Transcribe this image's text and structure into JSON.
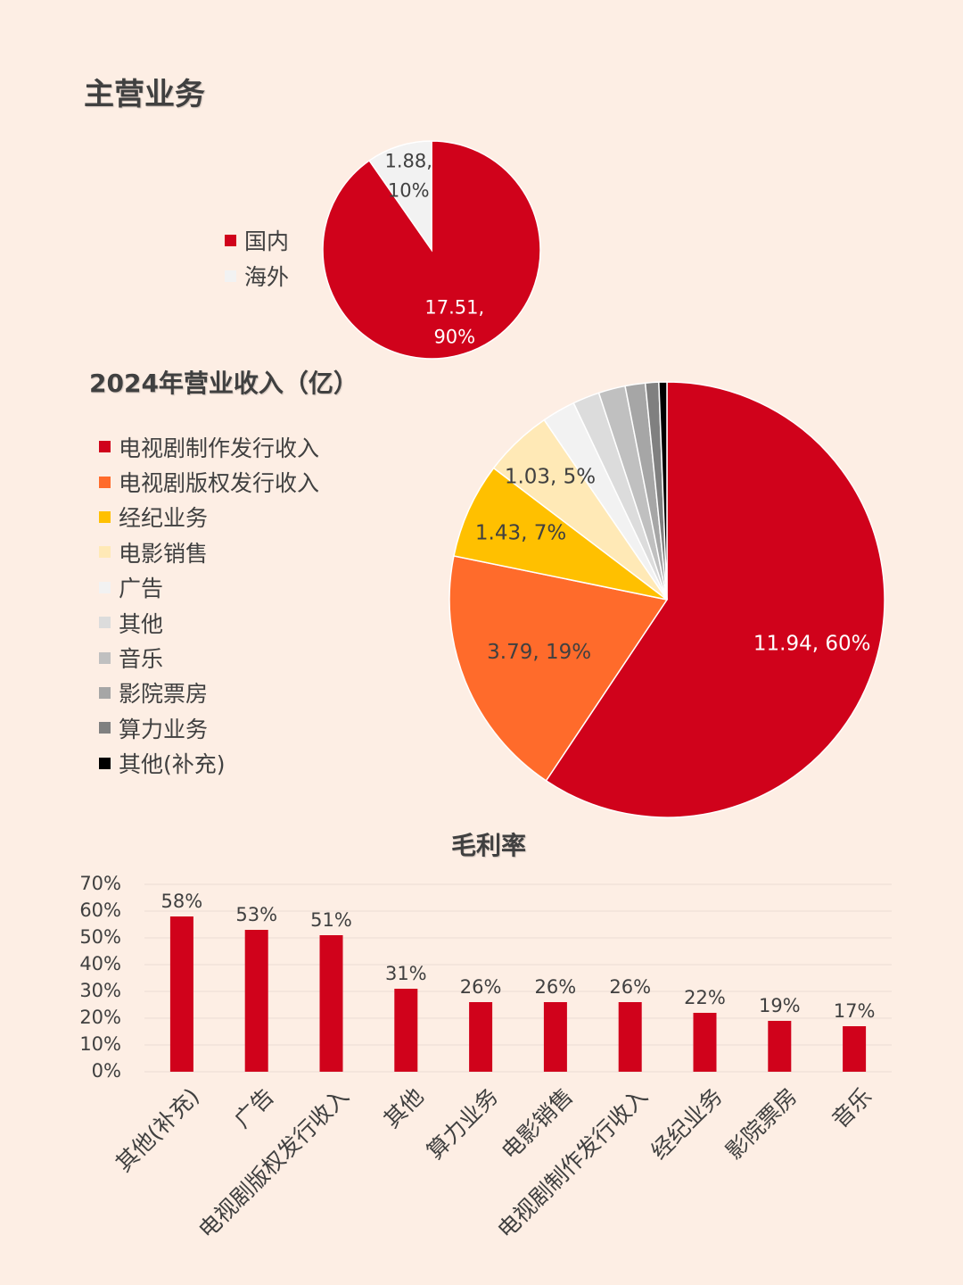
{
  "title1": "主营业务",
  "title2": "2024年营业收入（亿）",
  "title3": "毛利率",
  "chart_data": [
    {
      "type": "pie",
      "title": "主营业务",
      "legend_position": "left",
      "slices": [
        {
          "label": "国内",
          "value": 17.51,
          "percent": "90%",
          "data_label": [
            "17.51,",
            "90%"
          ],
          "color": "#d0021b",
          "label_color": "#ffffff"
        },
        {
          "label": "海外",
          "value": 1.88,
          "percent": "10%",
          "data_label": [
            "1.88,",
            "10%"
          ],
          "color": "#f2f2f2",
          "label_color": "#404040"
        }
      ]
    },
    {
      "type": "pie",
      "title": "2024年营业收入（亿）",
      "legend_position": "left",
      "slices": [
        {
          "label": "电视剧制作发行收入",
          "value": 11.94,
          "percent": "60%",
          "data_label": "11.94, 60%",
          "color": "#d0021b",
          "label_color": "#ffffff"
        },
        {
          "label": "电视剧版权发行收入",
          "value": 3.79,
          "percent": "19%",
          "data_label": "3.79, 19%",
          "color": "#ff6b2b",
          "label_color": "#404040"
        },
        {
          "label": "经纪业务",
          "value": 1.43,
          "percent": "7%",
          "data_label": "1.43, 7%",
          "color": "#ffc000",
          "label_color": "#404040"
        },
        {
          "label": "电影销售",
          "value": 1.03,
          "percent": "5%",
          "data_label": "1.03, 5%",
          "color": "#ffe9b6",
          "label_color": "#404040"
        },
        {
          "label": "广告",
          "value": 0.5,
          "color": "#f2f2f2"
        },
        {
          "label": "其他",
          "value": 0.4,
          "color": "#dcdcdc"
        },
        {
          "label": "音乐",
          "value": 0.4,
          "color": "#c0c0c0"
        },
        {
          "label": "影院票房",
          "value": 0.3,
          "color": "#a6a6a6"
        },
        {
          "label": "算力业务",
          "value": 0.2,
          "color": "#808080"
        },
        {
          "label": "其他(补充)",
          "value": 0.12,
          "color": "#000000"
        }
      ]
    },
    {
      "type": "bar",
      "title": "毛利率",
      "categories": [
        "其他(补充)",
        "广告",
        "电视剧版权发行收入",
        "其他",
        "算力业务",
        "电影销售",
        "电视剧制作发行收入",
        "经纪业务",
        "影院票房",
        "音乐"
      ],
      "values": [
        58,
        53,
        51,
        31,
        26,
        26,
        26,
        22,
        19,
        17
      ],
      "value_labels": [
        "58%",
        "53%",
        "51%",
        "31%",
        "26%",
        "26%",
        "26%",
        "22%",
        "19%",
        "17%"
      ],
      "ylim": [
        0,
        70
      ],
      "yticks": [
        "0%",
        "10%",
        "20%",
        "30%",
        "40%",
        "50%",
        "60%",
        "70%"
      ],
      "grid": true,
      "color": "#d0021b"
    }
  ]
}
